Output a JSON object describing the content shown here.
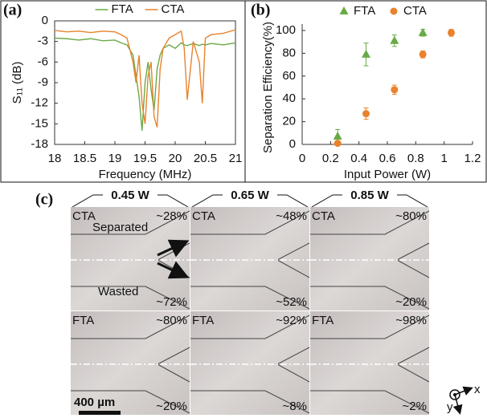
{
  "chart_data": [
    {
      "type": "line",
      "label": "(a)",
      "xlabel": "Frequency (MHz)",
      "ylabel": "S₁₁ (dB)",
      "x": [
        18,
        18.2,
        18.4,
        18.6,
        18.8,
        19,
        19.1,
        19.2,
        19.3,
        19.35,
        19.4,
        19.45,
        19.5,
        19.55,
        19.6,
        19.65,
        19.7,
        19.75,
        19.8,
        19.9,
        20,
        20.1,
        20.15,
        20.2,
        20.3,
        20.4,
        20.45,
        20.5,
        20.6,
        20.8,
        21
      ],
      "series": [
        {
          "name": "FTA",
          "color": "#6aaa45",
          "values": [
            -2.5,
            -2.6,
            -2.8,
            -2.6,
            -2.9,
            -2.8,
            -3.2,
            -3.5,
            -5,
            -8,
            -11,
            -16,
            -9,
            -6,
            -10,
            -13,
            -7,
            -5,
            -4,
            -3.5,
            -4,
            -3.2,
            -3.5,
            -3.6,
            -3.3,
            -3.6,
            -3.4,
            -3.5,
            -3.3,
            -3.5,
            -3.2
          ]
        },
        {
          "name": "CTA",
          "color": "#e8822d",
          "values": [
            -1.4,
            -1.6,
            -1.5,
            -1.7,
            -1.5,
            -1.6,
            -2,
            -2.5,
            -6,
            -9,
            -5,
            -12,
            -15,
            -8,
            -6,
            -14,
            -15.5,
            -7,
            -4,
            -2.5,
            -2,
            -1.5,
            -4,
            -11.5,
            -3,
            -6,
            -12,
            -2.5,
            -2,
            -1.8,
            -1.3
          ]
        }
      ],
      "xlim": [
        18,
        21
      ],
      "xticks": [
        18,
        18.5,
        19,
        19.5,
        20,
        20.5,
        21
      ],
      "ylim": [
        -18,
        0
      ],
      "yticks": [
        0,
        -3,
        -6,
        -9,
        -12,
        -15,
        -18
      ],
      "legend": "top",
      "frame": true
    },
    {
      "type": "scatter",
      "label": "(b)",
      "xlabel": "Input Power (W)",
      "ylabel": "Separation Efficiency(%)",
      "series": [
        {
          "name": "FTA",
          "color": "#6aaa45",
          "marker": "triangle",
          "x": [
            0.25,
            0.45,
            0.65,
            0.85
          ],
          "values": [
            7,
            79,
            91,
            98
          ],
          "errors": [
            6,
            10,
            5,
            3
          ]
        },
        {
          "name": "CTA",
          "color": "#e8822d",
          "marker": "circle",
          "x": [
            0.25,
            0.45,
            0.65,
            0.85,
            1.05
          ],
          "values": [
            1,
            27,
            48,
            79,
            98
          ],
          "errors": [
            2,
            5,
            4,
            3,
            3
          ]
        }
      ],
      "xlim": [
        0,
        1.2
      ],
      "xticks": [
        0,
        0.2,
        0.4,
        0.6,
        0.8,
        1,
        1.2
      ],
      "ylim": [
        0,
        100
      ],
      "yticks": [
        0,
        20,
        40,
        60,
        80,
        100
      ],
      "legend": "top",
      "frame": false
    }
  ],
  "panel_c": {
    "label": "(c)",
    "powers": [
      "0.45 W",
      "0.65 W",
      "0.85 W"
    ],
    "rows": [
      {
        "name": "CTA",
        "color": "#e8a020",
        "top": [
          "~28%",
          "~48%",
          "~80%"
        ],
        "bottom": [
          "~72%",
          "~52%",
          "~20%"
        ]
      },
      {
        "name": "FTA",
        "color": "#8cc860",
        "top": [
          "~80%",
          "~92%",
          "~98%"
        ],
        "bottom": [
          "~20%",
          "~8%",
          "~2%"
        ]
      }
    ],
    "regions": [
      "Separated",
      "Wasted"
    ],
    "scale_bar": "400 µm",
    "axes": [
      "x",
      "y"
    ]
  }
}
